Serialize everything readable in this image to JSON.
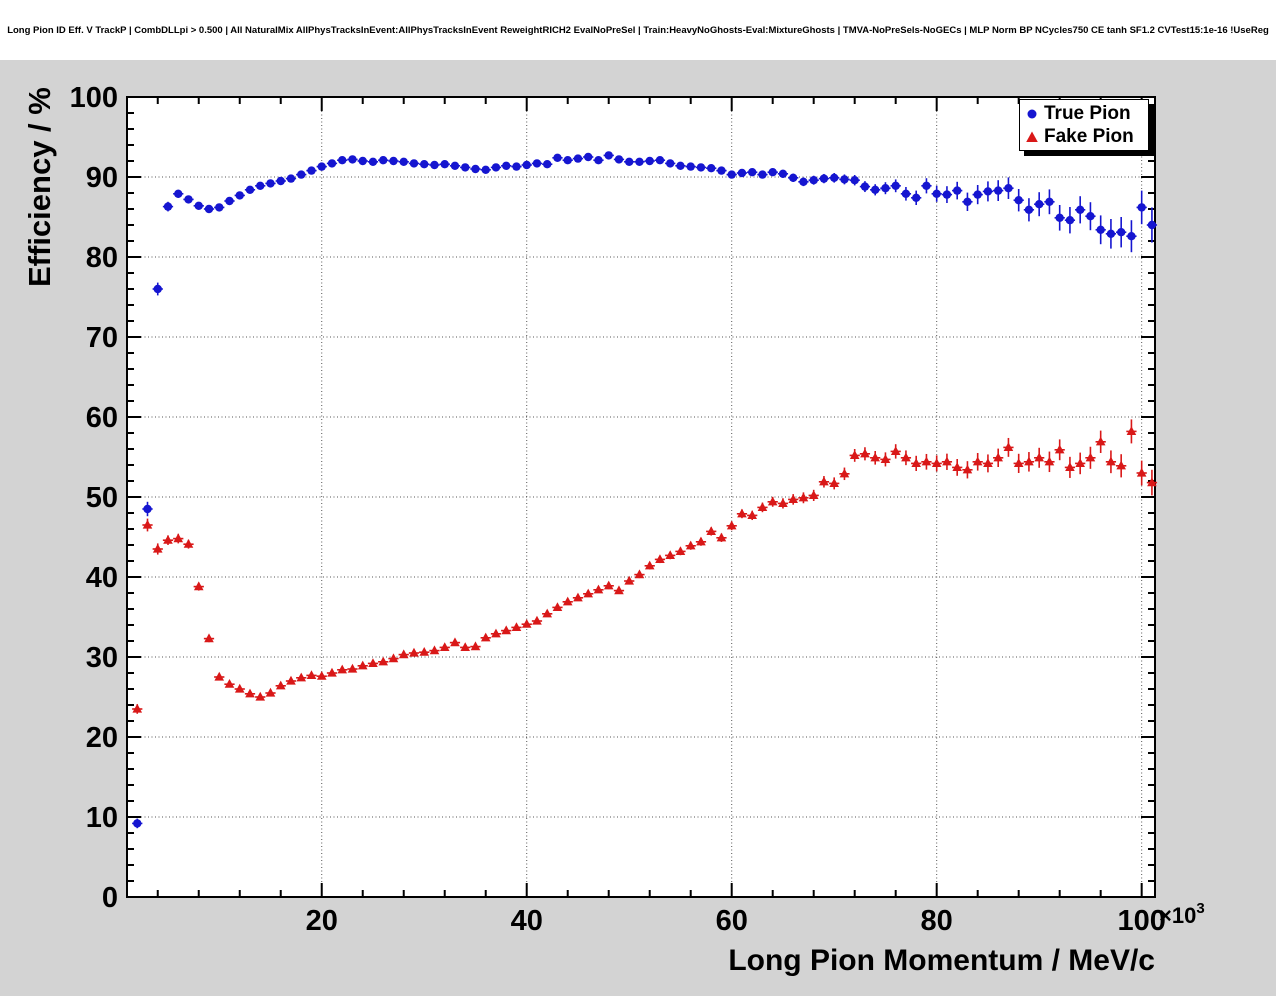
{
  "title": "Long Pion ID Eff. V TrackP  | CombDLLpi > 0.500 | All NaturalMix AllPhysTracksInEvent:AllPhysTracksInEvent ReweightRICH2 EvalNoPreSel | Train:HeavyNoGhosts-Eval:MixtureGhosts | TMVA-NoPreSels-NoGECs | MLP Norm BP NCycles750 CE tanh SF1.2 CVTest15:1e-16 !UseReg",
  "legend": {
    "entries": [
      {
        "label": "True Pion",
        "marker": "circle",
        "color": "#1515d0"
      },
      {
        "label": "Fake Pion",
        "marker": "triangle",
        "color": "#d91818"
      }
    ]
  },
  "colors": {
    "pad_background": "#d3d3d3",
    "frame_background": "#ffffff",
    "grid": "#555555",
    "axis": "#000000",
    "true_pion": "#1515d0",
    "fake_pion": "#d91818"
  },
  "chart_data": {
    "type": "scatter",
    "title": "Long Pion ID Eff. V TrackP  | CombDLLpi > 0.500 | All NaturalMix AllPhysTracksInEvent:AllPhysTracksInEvent ReweightRICH2 EvalNoPreSel | Train:HeavyNoGhosts-Eval:MixtureGhosts | TMVA-NoPreSels-NoGECs | MLP Norm BP NCycles750 CE tanh SF1.2 CVTest15:1e-16 !UseReg",
    "xlabel": "Long Pion Momentum / MeV/c",
    "ylabel": "Efficiency / %",
    "x_unit_note": "x values in units of 10^3 MeV/c",
    "x_multiplier": "×10",
    "x_multiplier_exp": "3",
    "xlim": [
      1.0,
      101.3
    ],
    "ylim": [
      0,
      100
    ],
    "x_ticks": [
      20,
      40,
      60,
      80,
      100
    ],
    "y_ticks": [
      0,
      10,
      20,
      30,
      40,
      50,
      60,
      70,
      80,
      90,
      100
    ],
    "x_minor_step": 4,
    "y_minor_step": 2,
    "grid": true,
    "legend_position": "top-right",
    "x_start": 2,
    "x_step": 1,
    "series": [
      {
        "name": "True Pion",
        "marker": "circle",
        "color": "#1515d0",
        "values": [
          9.2,
          48.5,
          76.0,
          86.3,
          87.9,
          87.2,
          86.4,
          86.0,
          86.2,
          87.0,
          87.7,
          88.4,
          88.9,
          89.2,
          89.5,
          89.8,
          90.3,
          90.8,
          91.3,
          91.7,
          92.1,
          92.2,
          92.0,
          91.9,
          92.1,
          92.0,
          91.9,
          91.7,
          91.6,
          91.5,
          91.6,
          91.4,
          91.2,
          91.0,
          90.9,
          91.2,
          91.4,
          91.3,
          91.5,
          91.7,
          91.6,
          92.4,
          92.1,
          92.3,
          92.5,
          92.1,
          92.7,
          92.2,
          91.9,
          91.9,
          92.0,
          92.1,
          91.7,
          91.4,
          91.3,
          91.2,
          91.1,
          90.8,
          90.3,
          90.5,
          90.6,
          90.3,
          90.6,
          90.4,
          89.9,
          89.4,
          89.6,
          89.8,
          89.9,
          89.7,
          89.6,
          88.8,
          88.4,
          88.6,
          88.9,
          87.9,
          87.4,
          88.9,
          87.9,
          87.8,
          88.3,
          86.9,
          87.8,
          88.2,
          88.3,
          88.6,
          87.1,
          85.9,
          86.6,
          86.9,
          84.9,
          84.6,
          85.9,
          85.1,
          83.4,
          82.9,
          83.1,
          82.6,
          86.2,
          84.0
        ],
        "errors": [
          0.6,
          0.9,
          0.8,
          0.6,
          0.5,
          0.45,
          0.4,
          0.4,
          0.4,
          0.35,
          0.3,
          0.3,
          0.3,
          0.3,
          0.3,
          0.3,
          0.3,
          0.3,
          0.3,
          0.3,
          0.3,
          0.3,
          0.3,
          0.3,
          0.3,
          0.3,
          0.3,
          0.3,
          0.3,
          0.3,
          0.3,
          0.3,
          0.3,
          0.3,
          0.3,
          0.3,
          0.3,
          0.3,
          0.3,
          0.3,
          0.3,
          0.32,
          0.32,
          0.32,
          0.32,
          0.34,
          0.34,
          0.34,
          0.34,
          0.35,
          0.35,
          0.36,
          0.36,
          0.38,
          0.38,
          0.4,
          0.4,
          0.42,
          0.42,
          0.44,
          0.45,
          0.46,
          0.48,
          0.5,
          0.52,
          0.54,
          0.56,
          0.58,
          0.6,
          0.62,
          0.65,
          0.68,
          0.7,
          0.75,
          0.8,
          0.85,
          0.9,
          0.95,
          1.0,
          1.05,
          1.1,
          1.15,
          1.2,
          1.25,
          1.3,
          1.35,
          1.4,
          1.45,
          1.5,
          1.55,
          1.6,
          1.65,
          1.7,
          1.75,
          1.8,
          1.85,
          1.9,
          2.0,
          2.1,
          2.2
        ]
      },
      {
        "name": "Fake Pion",
        "marker": "triangle",
        "color": "#d91818",
        "values": [
          23.5,
          46.5,
          43.5,
          44.6,
          44.8,
          44.1,
          38.8,
          32.3,
          27.5,
          26.6,
          26.0,
          25.4,
          25.0,
          25.5,
          26.4,
          27.0,
          27.4,
          27.7,
          27.6,
          28.0,
          28.4,
          28.5,
          28.9,
          29.2,
          29.4,
          29.8,
          30.3,
          30.5,
          30.6,
          30.8,
          31.2,
          31.8,
          31.2,
          31.3,
          32.4,
          32.9,
          33.3,
          33.7,
          34.1,
          34.5,
          35.4,
          36.2,
          36.9,
          37.4,
          37.9,
          38.4,
          38.9,
          38.3,
          39.5,
          40.3,
          41.4,
          42.2,
          42.7,
          43.2,
          43.9,
          44.4,
          45.7,
          44.9,
          46.4,
          47.9,
          47.7,
          48.7,
          49.4,
          49.2,
          49.7,
          49.9,
          50.2,
          51.9,
          51.7,
          52.9,
          55.2,
          55.4,
          54.9,
          54.7,
          55.7,
          54.9,
          54.2,
          54.4,
          54.2,
          54.4,
          53.7,
          53.4,
          54.4,
          54.2,
          54.9,
          56.2,
          54.2,
          54.4,
          54.9,
          54.4,
          55.9,
          53.7,
          54.2,
          54.9,
          56.9,
          54.4,
          53.9,
          58.2,
          53.0,
          51.8
        ],
        "errors": [
          0.6,
          0.8,
          0.7,
          0.6,
          0.6,
          0.55,
          0.5,
          0.45,
          0.4,
          0.4,
          0.35,
          0.35,
          0.35,
          0.35,
          0.35,
          0.35,
          0.35,
          0.35,
          0.35,
          0.35,
          0.35,
          0.35,
          0.35,
          0.35,
          0.35,
          0.35,
          0.35,
          0.35,
          0.35,
          0.35,
          0.35,
          0.35,
          0.35,
          0.35,
          0.35,
          0.35,
          0.35,
          0.35,
          0.35,
          0.35,
          0.4,
          0.4,
          0.4,
          0.4,
          0.4,
          0.4,
          0.42,
          0.42,
          0.44,
          0.44,
          0.46,
          0.46,
          0.48,
          0.48,
          0.5,
          0.5,
          0.52,
          0.52,
          0.55,
          0.55,
          0.58,
          0.6,
          0.62,
          0.64,
          0.66,
          0.68,
          0.7,
          0.72,
          0.75,
          0.78,
          0.8,
          0.82,
          0.85,
          0.88,
          0.9,
          0.92,
          0.95,
          0.98,
          1.0,
          1.02,
          1.05,
          1.08,
          1.1,
          1.12,
          1.15,
          1.18,
          1.2,
          1.22,
          1.25,
          1.28,
          1.3,
          1.32,
          1.35,
          1.38,
          1.4,
          1.42,
          1.45,
          1.5,
          1.55,
          1.6
        ]
      }
    ]
  }
}
